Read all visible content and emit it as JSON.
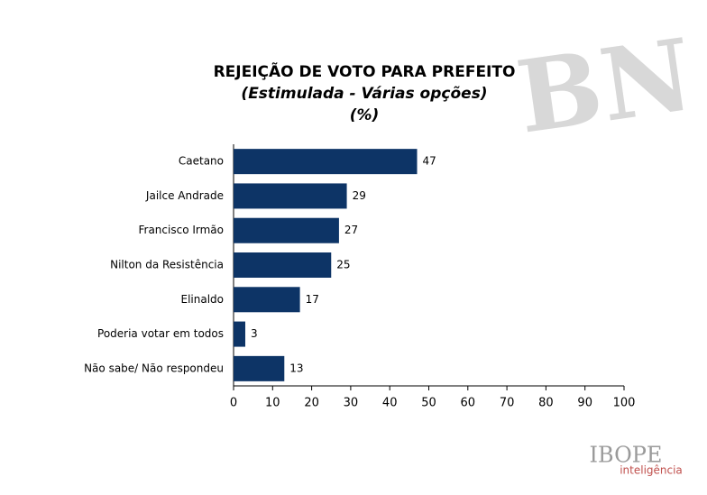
{
  "chart_data": {
    "type": "bar",
    "orientation": "horizontal",
    "title": "REJEIÇÃO DE VOTO PARA PREFEITO",
    "subtitle": "(Estimulada - Várias opções)",
    "unit_note": "(%)",
    "categories": [
      "Caetano",
      "Jailce Andrade",
      "Francisco Irmão",
      "Nilton da Resistência",
      "Elinaldo",
      "Poderia votar em todos",
      "Não sabe/ Não respondeu"
    ],
    "values": [
      47,
      29,
      27,
      25,
      17,
      3,
      13
    ],
    "color": "#0d3466",
    "xlim": [
      0,
      100
    ],
    "xticks": [
      0,
      10,
      20,
      30,
      40,
      50,
      60,
      70,
      80,
      90,
      100
    ],
    "grid": false
  },
  "logos": {
    "watermark": "BN",
    "brand": "IBOPE",
    "brand_sub": "inteligência"
  }
}
